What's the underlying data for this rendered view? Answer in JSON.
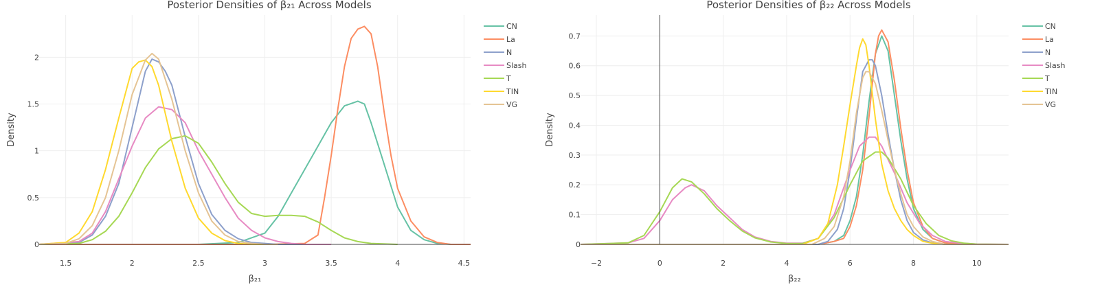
{
  "chart_data": [
    {
      "type": "line",
      "title": "Posterior Densities of β₂₁ Across Models",
      "xlabel": "β₂₁",
      "ylabel": "Density",
      "xlim": [
        1.3,
        4.55
      ],
      "ylim": [
        0,
        2.45
      ],
      "xticks": [
        "1.5",
        "2",
        "2.5",
        "3",
        "3.5",
        "4",
        "4.5"
      ],
      "xtick_values": [
        1.5,
        2,
        2.5,
        3,
        3.5,
        4,
        4.5
      ],
      "yticks": [
        "0",
        "0.5",
        "1",
        "1.5",
        "2"
      ],
      "ytick_values": [
        0,
        0.5,
        1,
        1.5,
        2
      ],
      "grid": true,
      "legend_position": "top-right",
      "series": [
        {
          "name": "CN",
          "color": "#66c2a5",
          "x": [
            1.3,
            2.5,
            2.8,
            3.0,
            3.1,
            3.2,
            3.3,
            3.4,
            3.5,
            3.6,
            3.7,
            3.75,
            3.8,
            3.9,
            4.0,
            4.1,
            4.2,
            4.3,
            4.4,
            4.55
          ],
          "y": [
            0,
            0,
            0.02,
            0.12,
            0.3,
            0.55,
            0.8,
            1.05,
            1.3,
            1.48,
            1.53,
            1.5,
            1.3,
            0.85,
            0.4,
            0.15,
            0.05,
            0.01,
            0,
            0
          ]
        },
        {
          "name": "La",
          "color": "#fc8d62",
          "x": [
            1.3,
            3.0,
            3.3,
            3.4,
            3.45,
            3.5,
            3.55,
            3.6,
            3.65,
            3.7,
            3.75,
            3.8,
            3.85,
            3.9,
            3.95,
            4.0,
            4.1,
            4.2,
            4.3,
            4.4,
            4.55
          ],
          "y": [
            0,
            0,
            0.01,
            0.1,
            0.5,
            0.95,
            1.45,
            1.9,
            2.2,
            2.3,
            2.33,
            2.25,
            1.9,
            1.4,
            0.95,
            0.6,
            0.25,
            0.08,
            0.02,
            0,
            0
          ]
        },
        {
          "name": "N",
          "color": "#8da0cb",
          "x": [
            1.3,
            1.6,
            1.7,
            1.8,
            1.9,
            2.0,
            2.1,
            2.15,
            2.2,
            2.25,
            2.3,
            2.4,
            2.5,
            2.6,
            2.7,
            2.8,
            2.9,
            3.0,
            3.1,
            3.3
          ],
          "y": [
            0,
            0.02,
            0.1,
            0.3,
            0.65,
            1.25,
            1.85,
            1.98,
            1.95,
            1.85,
            1.7,
            1.15,
            0.65,
            0.32,
            0.15,
            0.06,
            0.02,
            0.01,
            0,
            0
          ]
        },
        {
          "name": "Slash",
          "color": "#e78ac3",
          "x": [
            1.3,
            1.6,
            1.7,
            1.8,
            1.9,
            2.0,
            2.1,
            2.2,
            2.3,
            2.4,
            2.5,
            2.6,
            2.7,
            2.8,
            2.9,
            3.0,
            3.1,
            3.2,
            3.3,
            3.5
          ],
          "y": [
            0,
            0.03,
            0.12,
            0.35,
            0.7,
            1.05,
            1.35,
            1.47,
            1.44,
            1.3,
            1.0,
            0.75,
            0.5,
            0.28,
            0.15,
            0.07,
            0.03,
            0.01,
            0,
            0
          ]
        },
        {
          "name": "T",
          "color": "#a6d854",
          "x": [
            1.3,
            1.6,
            1.7,
            1.8,
            1.9,
            2.0,
            2.1,
            2.2,
            2.3,
            2.4,
            2.5,
            2.6,
            2.7,
            2.8,
            2.9,
            3.0,
            3.1,
            3.2,
            3.3,
            3.4,
            3.5,
            3.6,
            3.7,
            3.8,
            4.0
          ],
          "y": [
            0,
            0.01,
            0.05,
            0.14,
            0.3,
            0.55,
            0.82,
            1.02,
            1.13,
            1.16,
            1.08,
            0.88,
            0.65,
            0.45,
            0.33,
            0.3,
            0.31,
            0.31,
            0.3,
            0.24,
            0.15,
            0.07,
            0.03,
            0.01,
            0
          ]
        },
        {
          "name": "TIN",
          "color": "#ffd92f",
          "x": [
            1.3,
            1.5,
            1.6,
            1.7,
            1.8,
            1.9,
            2.0,
            2.05,
            2.1,
            2.15,
            2.2,
            2.3,
            2.4,
            2.5,
            2.6,
            2.7,
            2.8,
            2.9,
            3.0
          ],
          "y": [
            0,
            0.02,
            0.12,
            0.35,
            0.8,
            1.35,
            1.88,
            1.95,
            1.97,
            1.9,
            1.7,
            1.1,
            0.6,
            0.28,
            0.12,
            0.04,
            0.01,
            0,
            0
          ]
        },
        {
          "name": "VG",
          "color": "#e5c494",
          "x": [
            1.3,
            1.5,
            1.6,
            1.7,
            1.8,
            1.9,
            2.0,
            2.1,
            2.15,
            2.2,
            2.3,
            2.4,
            2.5,
            2.6,
            2.7,
            2.8,
            2.9,
            3.0,
            3.1
          ],
          "y": [
            0,
            0.01,
            0.06,
            0.2,
            0.5,
            1.0,
            1.6,
            1.97,
            2.04,
            1.98,
            1.55,
            1.0,
            0.55,
            0.25,
            0.1,
            0.03,
            0.01,
            0,
            0
          ]
        }
      ]
    },
    {
      "type": "line",
      "title": "Posterior Densities of β₂₂ Across Models",
      "xlabel": "β₂₂",
      "ylabel": "Density",
      "xlim": [
        -2.5,
        11.0
      ],
      "ylim": [
        0,
        0.77
      ],
      "xticks": [
        "−2",
        "0",
        "2",
        "4",
        "6",
        "8",
        "10"
      ],
      "xtick_values": [
        -2,
        0,
        2,
        4,
        6,
        8,
        10
      ],
      "yticks": [
        "0",
        "0.1",
        "0.2",
        "0.3",
        "0.4",
        "0.5",
        "0.6",
        "0.7"
      ],
      "ytick_values": [
        0,
        0.1,
        0.2,
        0.3,
        0.4,
        0.5,
        0.6,
        0.7
      ],
      "grid": true,
      "legend_position": "top-right",
      "series": [
        {
          "name": "CN",
          "color": "#66c2a5",
          "x": [
            -2.5,
            5.0,
            5.5,
            5.8,
            6.0,
            6.2,
            6.4,
            6.6,
            6.8,
            7.0,
            7.2,
            7.4,
            7.6,
            7.8,
            8.0,
            8.3,
            8.6,
            9.0,
            9.5,
            11.0
          ],
          "y": [
            0,
            0,
            0.01,
            0.03,
            0.08,
            0.16,
            0.3,
            0.48,
            0.64,
            0.7,
            0.65,
            0.5,
            0.35,
            0.22,
            0.12,
            0.05,
            0.02,
            0.005,
            0,
            0
          ]
        },
        {
          "name": "La",
          "color": "#fc8d62",
          "x": [
            -2.5,
            5.0,
            5.5,
            5.8,
            6.0,
            6.2,
            6.4,
            6.6,
            6.8,
            6.9,
            7.0,
            7.2,
            7.4,
            7.6,
            7.8,
            8.0,
            8.3,
            8.6,
            9.0,
            9.5,
            11.0
          ],
          "y": [
            0,
            0,
            0.01,
            0.02,
            0.06,
            0.13,
            0.25,
            0.43,
            0.64,
            0.7,
            0.72,
            0.68,
            0.55,
            0.39,
            0.25,
            0.14,
            0.06,
            0.02,
            0.005,
            0,
            0
          ]
        },
        {
          "name": "N",
          "color": "#8da0cb",
          "x": [
            -2.5,
            5.0,
            5.3,
            5.6,
            5.8,
            6.0,
            6.2,
            6.4,
            6.6,
            6.7,
            6.8,
            7.0,
            7.2,
            7.4,
            7.6,
            7.8,
            8.0,
            8.3,
            8.6,
            9.0,
            11.0
          ],
          "y": [
            0,
            0,
            0.01,
            0.05,
            0.12,
            0.25,
            0.42,
            0.58,
            0.62,
            0.62,
            0.6,
            0.5,
            0.37,
            0.25,
            0.15,
            0.08,
            0.04,
            0.015,
            0.005,
            0,
            0
          ]
        },
        {
          "name": "Slash",
          "color": "#e78ac3",
          "x": [
            -2.5,
            -1.0,
            -0.5,
            0.0,
            0.4,
            0.8,
            1.0,
            1.4,
            1.8,
            2.2,
            2.6,
            3.0,
            3.5,
            4.0,
            4.5,
            5.0,
            5.5,
            6.0,
            6.3,
            6.6,
            6.8,
            7.0,
            7.4,
            7.8,
            8.2,
            8.6,
            9.0,
            9.5,
            10.0,
            11.0
          ],
          "y": [
            0,
            0.005,
            0.02,
            0.08,
            0.15,
            0.19,
            0.2,
            0.18,
            0.13,
            0.09,
            0.05,
            0.025,
            0.01,
            0.004,
            0.004,
            0.02,
            0.1,
            0.25,
            0.33,
            0.36,
            0.36,
            0.33,
            0.24,
            0.14,
            0.07,
            0.03,
            0.01,
            0.004,
            0.001,
            0
          ]
        },
        {
          "name": "T",
          "color": "#a6d854",
          "x": [
            -2.5,
            -1.0,
            -0.5,
            0.0,
            0.4,
            0.7,
            1.0,
            1.4,
            1.8,
            2.2,
            2.6,
            3.0,
            3.5,
            4.0,
            4.5,
            5.0,
            5.5,
            6.0,
            6.4,
            6.8,
            7.0,
            7.2,
            7.6,
            8.0,
            8.4,
            8.8,
            9.2,
            9.6,
            10.0,
            11.0
          ],
          "y": [
            0,
            0.005,
            0.03,
            0.11,
            0.19,
            0.22,
            0.21,
            0.17,
            0.12,
            0.08,
            0.045,
            0.022,
            0.008,
            0.003,
            0.003,
            0.02,
            0.09,
            0.2,
            0.28,
            0.31,
            0.31,
            0.29,
            0.22,
            0.13,
            0.07,
            0.03,
            0.012,
            0.004,
            0.001,
            0
          ]
        },
        {
          "name": "TIN",
          "color": "#ffd92f",
          "x": [
            -2.5,
            4.5,
            5.0,
            5.3,
            5.6,
            5.8,
            6.0,
            6.2,
            6.3,
            6.4,
            6.5,
            6.6,
            6.8,
            7.0,
            7.2,
            7.4,
            7.6,
            7.8,
            8.0,
            8.3,
            8.6,
            9.0,
            11.0
          ],
          "y": [
            0,
            0,
            0.02,
            0.07,
            0.2,
            0.33,
            0.47,
            0.6,
            0.66,
            0.69,
            0.67,
            0.6,
            0.42,
            0.27,
            0.18,
            0.12,
            0.08,
            0.05,
            0.03,
            0.01,
            0.004,
            0,
            0
          ]
        },
        {
          "name": "VG",
          "color": "#e5c494",
          "x": [
            -2.5,
            4.8,
            5.2,
            5.5,
            5.8,
            6.0,
            6.2,
            6.4,
            6.5,
            6.6,
            6.8,
            7.0,
            7.2,
            7.4,
            7.6,
            7.8,
            8.0,
            8.3,
            8.6,
            9.0,
            11.0
          ],
          "y": [
            0,
            0,
            0.02,
            0.06,
            0.16,
            0.28,
            0.44,
            0.56,
            0.58,
            0.58,
            0.54,
            0.45,
            0.35,
            0.25,
            0.17,
            0.1,
            0.06,
            0.025,
            0.01,
            0,
            0
          ]
        }
      ]
    }
  ]
}
